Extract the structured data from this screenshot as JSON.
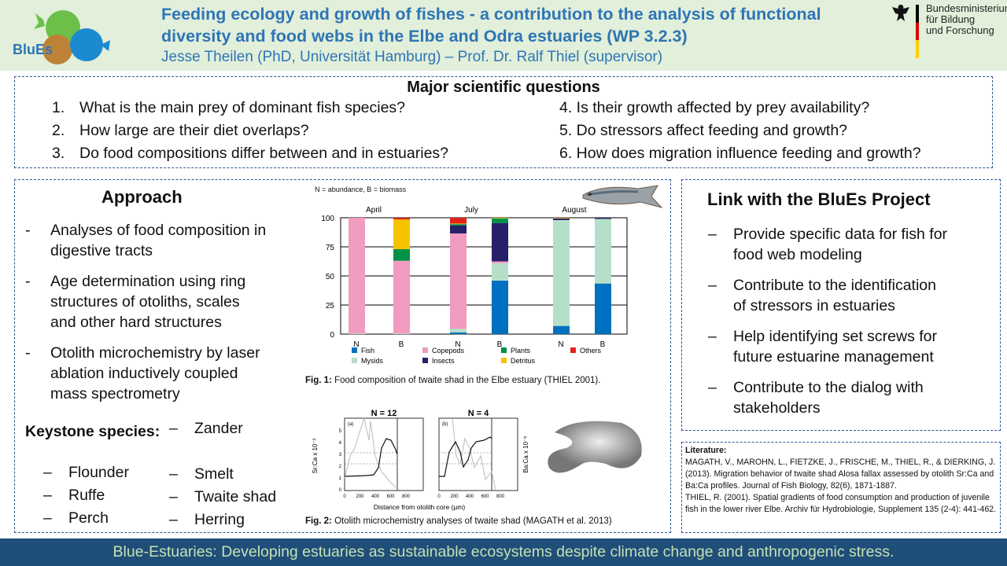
{
  "header": {
    "logo_text": "BluEs",
    "title": "Feeding ecology and growth of fishes - a contribution to the analysis of functional diversity and food webs in the Elbe and Odra estuaries (WP 3.2.3)",
    "subtitle": "Jesse Theilen (PhD, Universität Hamburg) – Prof. Dr. Ralf Thiel (supervisor)",
    "ministry": [
      "Bundesministerium",
      "für Bildung",
      "und Forschung"
    ]
  },
  "questions": {
    "heading": "Major scientific questions",
    "items": [
      "1.",
      "What is the main prey of dominant fish species?",
      "2.",
      "How large are their diet overlaps?",
      "3.",
      "Do food compositions differ between and in estuaries?",
      "4. Is their growth affected by prey availability?",
      "5. Do stressors affect feeding and growth?",
      "6. How does migration influence feeding and growth?"
    ]
  },
  "approach": {
    "heading": "Approach",
    "items": [
      "Analyses of food composition in",
      "digestive tracts",
      "Age determination using ring",
      "structures of otoliths, scales",
      "and other hard structures",
      "Otolith microchemistry by laser",
      "ablation inductively coupled",
      "mass spectrometry"
    ],
    "keystone_label": "Keystone species:",
    "species": [
      "Zander",
      "Flounder",
      "Smelt",
      "Ruffe",
      "Twaite shad",
      "Perch",
      "Herring"
    ]
  },
  "link": {
    "heading": "Link with the BluEs Project",
    "items": [
      "Provide specific data for fish for",
      "food web modeling",
      "Contribute to the identification",
      "of stressors in estuaries",
      "Help identifying set screws for",
      "future estuarine management",
      "Contribute to the dialog with",
      "stakeholders"
    ]
  },
  "fig1": {
    "note": "N = abundance, B = biomass",
    "caption_bold": "Fig. 1:",
    "caption": " Food composition of twaite shad in the Elbe estuary (THIEL 2001)."
  },
  "fig2": {
    "titles": [
      "N = 12",
      "N = 4"
    ],
    "panel_labels": [
      "(a)",
      "(b)"
    ],
    "ylabel_left": "Sr:Ca x 10⁻³",
    "ylabel_right": "Ba:Ca x 10⁻⁶",
    "xlabel": "Distance from otolith core (µm)",
    "xticks": [
      "0",
      "200",
      "400",
      "600",
      "800"
    ],
    "yticks": [
      "0",
      "1",
      "2",
      "3",
      "4",
      "5"
    ],
    "caption_bold": "Fig. 2:",
    "caption": " Otolith microchemistry analyses of twaite shad (MAGATH et al. 2013)"
  },
  "literature": {
    "heading": "Literature:",
    "refs": [
      "MAGATH, V., MAROHN, L., FIETZKE, J., FRISCHE, M., THIEL, R., & DIERKING, J. (2013). Migration behavior of twaite shad Alosa fallax assessed by otolith Sr:Ca and Ba:Ca profiles. Journal of Fish Biology, 82(6), 1871-1887.",
      "THIEL, R. (2001). Spatial gradients of food consumption and production of juvenile fish in the lower river Elbe. Archiv für Hydrobiologie, Supplement 135 (2-4): 441-462."
    ]
  },
  "footer": "Blue-Estuaries: Developing estuaries as sustainable ecosystems despite climate change and anthropogenic stress.",
  "chart_data": {
    "type": "bar",
    "stacked": true,
    "months": [
      "April",
      "July",
      "August"
    ],
    "categories": [
      "N",
      "B",
      "N",
      "B",
      "N",
      "B"
    ],
    "ylim": [
      0,
      100
    ],
    "yticks": [
      "0",
      "25",
      "50",
      "75",
      "100"
    ],
    "series": [
      {
        "name": "Fish",
        "color": "#0070c0",
        "values": [
          0,
          0,
          1.5,
          46,
          7,
          43.5
        ]
      },
      {
        "name": "Mysids",
        "color": "#b6dfca",
        "values": [
          0.5,
          0.5,
          3,
          15,
          91,
          55.5
        ]
      },
      {
        "name": "Copepods",
        "color": "#f19bc0",
        "values": [
          99.5,
          62.5,
          82,
          1.5,
          0,
          0
        ]
      },
      {
        "name": "Insects",
        "color": "#262069",
        "values": [
          0,
          0,
          7,
          33,
          1.5,
          1
        ]
      },
      {
        "name": "Plants",
        "color": "#009245",
        "values": [
          0,
          10,
          1,
          4,
          0,
          0
        ]
      },
      {
        "name": "Detritus",
        "color": "#f6c300",
        "values": [
          0,
          25.5,
          0.5,
          0.5,
          0.5,
          0
        ]
      },
      {
        "name": "Others",
        "color": "#e2231a",
        "values": [
          0,
          1.5,
          5,
          0,
          0,
          0
        ]
      }
    ],
    "legend_order": [
      "Fish",
      "Copepods",
      "Plants",
      "Others",
      "Mysids",
      "Insects",
      "Detritus"
    ]
  }
}
